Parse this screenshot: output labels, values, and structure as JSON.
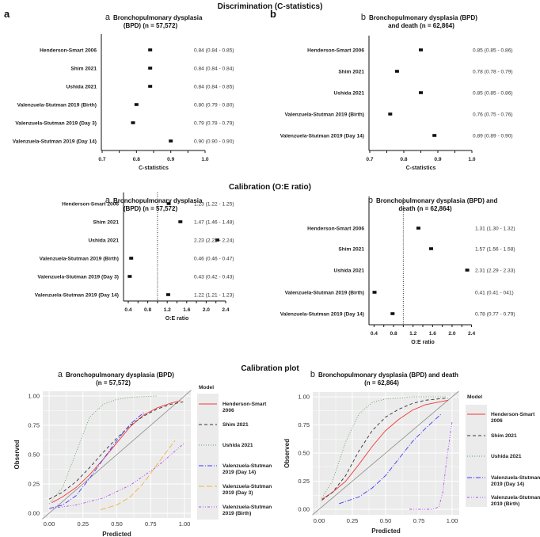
{
  "sections": {
    "discrimination": "Discrimination (C-statistics)",
    "calibration": "Calibration (O:E ratio)",
    "calibration_plot": "Calibration plot"
  },
  "panel_letters": {
    "a": "a",
    "b": "b"
  },
  "chart_data": [
    {
      "type": "forest",
      "id": "cstat-bpd",
      "sub": "a",
      "title": [
        "Bronchopulmonary dysplasia",
        "(BPD) (n = 57,572)"
      ],
      "xlabel": "C-statistics",
      "xlim": [
        0.7,
        1.0
      ],
      "ticks": [
        0.7,
        0.8,
        0.9,
        1.0
      ],
      "tick_labels": [
        "0.7",
        "0.8",
        "0.9",
        "1.0"
      ],
      "rows": [
        {
          "model": "Henderson-Smart 2006",
          "value": 0.84,
          "text": "0.84 (0.84 - 0.85)"
        },
        {
          "model": "Shim 2021",
          "value": 0.84,
          "text": "0.84 (0.84 - 0.84)"
        },
        {
          "model": "Ushida 2021",
          "value": 0.84,
          "text": "0.84 (0.84 - 0.85)"
        },
        {
          "model": "Valenzuela-Stutman 2019 (Birth)",
          "value": 0.8,
          "text": "0.80 (0.79 - 0.80)"
        },
        {
          "model": "Valenzuela-Stutman 2019 (Day 3)",
          "value": 0.79,
          "text": "0.79 (0.78 - 0.79)"
        },
        {
          "model": "Valenzuela-Stutman 2019 (Day 14)",
          "value": 0.9,
          "text": "0.90 (0.90 - 0.90)"
        }
      ]
    },
    {
      "type": "forest",
      "id": "cstat-bpd-death",
      "sub": "b",
      "title": [
        "Bronchopulmonary dysplasia (BPD)",
        "and death (n = 62,864)"
      ],
      "xlabel": "C-statistics",
      "xlim": [
        0.7,
        1.0
      ],
      "ticks": [
        0.7,
        0.8,
        0.9,
        1.0
      ],
      "tick_labels": [
        "0.7",
        "0.8",
        "0.9",
        "1.0"
      ],
      "rows": [
        {
          "model": "Henderson-Smart 2006",
          "value": 0.85,
          "text": "0.85 (0.85 - 0.86)"
        },
        {
          "model": "Shim 2021",
          "value": 0.78,
          "text": "0.78 (0.78 - 0.79)"
        },
        {
          "model": "Ushida 2021",
          "value": 0.85,
          "text": "0.85 (0.85 - 0.86)"
        },
        {
          "model": "Valenzuela-Stutman 2019 (Birth)",
          "value": 0.76,
          "text": "0.76 (0.75 - 0.76)"
        },
        {
          "model": "Valenzuela-Stutman 2019 (Day 14)",
          "value": 0.89,
          "text": "0.89 (0.89 - 0.90)"
        }
      ]
    },
    {
      "type": "forest",
      "id": "oe-bpd",
      "sub": "a",
      "title": [
        "Bronchopulmonary dysplasia",
        "(BPD) (n = 57,572)"
      ],
      "xlabel": "O:E ratio",
      "xlim": [
        0.4,
        2.4
      ],
      "reference": 1.0,
      "ticks": [
        0.4,
        0.8,
        1.2,
        1.6,
        2.0,
        2.4
      ],
      "tick_labels": [
        "0.4",
        "0.8",
        "1.2",
        "1.6",
        "2.0",
        "2.4"
      ],
      "rows": [
        {
          "model": "Henderson-Smart 2006",
          "value": 1.23,
          "text": "1.23 (1.22 - 1.25)"
        },
        {
          "model": "Shim 2021",
          "value": 1.47,
          "text": "1.47 (1.46 - 1.48)"
        },
        {
          "model": "Ushida 2021",
          "value": 2.23,
          "text": "2.23 (2.22 - 2.24)"
        },
        {
          "model": "Valenzuela-Stutman 2019 (Birth)",
          "value": 0.46,
          "text": "0.46 (0.46 - 0.47)"
        },
        {
          "model": "Valenzuela-Stutman 2019 (Day 3)",
          "value": 0.43,
          "text": "0.43 (0.42 - 0.43)"
        },
        {
          "model": "Valenzuela-Stutman 2019 (Day 14)",
          "value": 1.22,
          "text": "1.22 (1.21 - 1.23)"
        }
      ]
    },
    {
      "type": "forest",
      "id": "oe-bpd-death",
      "sub": "b",
      "title": [
        "Bronchopulmonary dysplasia (BPD) and",
        "death (n = 62,864)"
      ],
      "xlabel": "O:E ratio",
      "xlim": [
        0.4,
        2.4
      ],
      "reference": 1.0,
      "ticks": [
        0.4,
        0.8,
        1.2,
        1.6,
        2.0,
        2.4
      ],
      "tick_labels": [
        "0.4",
        "0.8",
        "1.2",
        "1.6",
        "2.0",
        "2.4"
      ],
      "rows": [
        {
          "model": "Henderson-Smart 2006",
          "value": 1.31,
          "text": "1.31 (1.30 - 1.32)"
        },
        {
          "model": "Shim 2021",
          "value": 1.57,
          "text": "1.57 (1.56 - 1.58)"
        },
        {
          "model": "Ushida 2021",
          "value": 2.31,
          "text": "2.31 (2.29 - 2.33)"
        },
        {
          "model": "Valenzuela-Stutman 2019 (Birth)",
          "value": 0.41,
          "text": "0.41 (0.41 - 041)"
        },
        {
          "model": "Valenzuela-Stutman 2019 (Day 14)",
          "value": 0.78,
          "text": "0.78 (0.77 - 0.79)"
        }
      ]
    },
    {
      "type": "line",
      "id": "calplot-bpd",
      "sub": "a",
      "title": [
        "Bronchopulmonary dysplasia (BPD)",
        "(n = 57,572)"
      ],
      "xlabel": "Predicted",
      "ylabel": "Observed",
      "xlim": [
        0,
        1
      ],
      "ylim": [
        0,
        1
      ],
      "ticks": [
        "0.00",
        "0.25",
        "0.50",
        "0.75",
        "1.00"
      ],
      "legend_title": "Model",
      "series": [
        {
          "name": [
            "Henderson-Smart",
            "2006"
          ],
          "color": "#f03a3a",
          "dash": "",
          "points": [
            [
              0.02,
              0.09
            ],
            [
              0.1,
              0.14
            ],
            [
              0.2,
              0.22
            ],
            [
              0.3,
              0.33
            ],
            [
              0.4,
              0.46
            ],
            [
              0.5,
              0.6
            ],
            [
              0.6,
              0.74
            ],
            [
              0.7,
              0.84
            ],
            [
              0.8,
              0.9
            ],
            [
              0.9,
              0.94
            ],
            [
              0.97,
              0.96
            ]
          ]
        },
        {
          "name": [
            "Shim 2021"
          ],
          "color": "#333333",
          "dash": "4,3",
          "points": [
            [
              0,
              0.12
            ],
            [
              0.1,
              0.18
            ],
            [
              0.2,
              0.27
            ],
            [
              0.3,
              0.39
            ],
            [
              0.4,
              0.52
            ],
            [
              0.5,
              0.64
            ],
            [
              0.6,
              0.75
            ],
            [
              0.7,
              0.83
            ],
            [
              0.8,
              0.89
            ],
            [
              0.9,
              0.93
            ],
            [
              0.99,
              0.95
            ]
          ]
        },
        {
          "name": [
            "Ushida 2021"
          ],
          "color": "#5f9e5f",
          "dash": "1,2",
          "points": [
            [
              0,
              0.08
            ],
            [
              0.1,
              0.22
            ],
            [
              0.2,
              0.52
            ],
            [
              0.3,
              0.82
            ],
            [
              0.4,
              0.93
            ],
            [
              0.5,
              0.97
            ],
            [
              0.6,
              0.99
            ],
            [
              0.8,
              1.0
            ]
          ]
        },
        {
          "name": [
            "Valenzuela-Stutman",
            "2019 (Day 14)"
          ],
          "color": "#3a3aff",
          "dash": "6,2,1,2",
          "points": [
            [
              0,
              0.04
            ],
            [
              0.1,
              0.07
            ],
            [
              0.2,
              0.15
            ],
            [
              0.3,
              0.3
            ],
            [
              0.4,
              0.46
            ],
            [
              0.5,
              0.62
            ],
            [
              0.6,
              0.76
            ],
            [
              0.7,
              0.86
            ]
          ]
        },
        {
          "name": [
            "Valenzuela-Stutman",
            "2019 (Day 3)"
          ],
          "color": "#f5b040",
          "dash": "7,3",
          "points": [
            [
              0.38,
              0.03
            ],
            [
              0.5,
              0.07
            ],
            [
              0.6,
              0.14
            ],
            [
              0.7,
              0.26
            ],
            [
              0.8,
              0.42
            ],
            [
              0.93,
              0.62
            ]
          ]
        },
        {
          "name": [
            "Valenzuela-Stutman",
            "2019 (Birth)"
          ],
          "color": "#b050f0",
          "dash": "3,2,1,2,1,2",
          "points": [
            [
              0,
              0.04
            ],
            [
              0.2,
              0.07
            ],
            [
              0.4,
              0.13
            ],
            [
              0.6,
              0.24
            ],
            [
              0.8,
              0.4
            ],
            [
              1.0,
              0.6
            ]
          ]
        }
      ]
    },
    {
      "type": "line",
      "id": "calplot-bpd-death",
      "sub": "b",
      "title": [
        "Bronchopulmonary dysplasia (BPD) and death",
        "(n = 62,864)"
      ],
      "xlabel": "Predicted",
      "ylabel": "Observed",
      "xlim": [
        0,
        1
      ],
      "ylim": [
        0,
        1
      ],
      "ticks": [
        "0.00",
        "0.25",
        "0.50",
        "0.75",
        "1.00"
      ],
      "legend_title": "Model",
      "series": [
        {
          "name": [
            "Henderson-Smart",
            "2006"
          ],
          "color": "#f03a3a",
          "dash": "",
          "points": [
            [
              0.02,
              0.09
            ],
            [
              0.1,
              0.15
            ],
            [
              0.2,
              0.25
            ],
            [
              0.3,
              0.4
            ],
            [
              0.4,
              0.56
            ],
            [
              0.5,
              0.7
            ],
            [
              0.6,
              0.8
            ],
            [
              0.7,
              0.88
            ],
            [
              0.8,
              0.93
            ],
            [
              0.97,
              0.97
            ]
          ]
        },
        {
          "name": [
            "Shim 2021"
          ],
          "color": "#333333",
          "dash": "4,3",
          "points": [
            [
              0.02,
              0.08
            ],
            [
              0.1,
              0.15
            ],
            [
              0.2,
              0.3
            ],
            [
              0.3,
              0.52
            ],
            [
              0.4,
              0.7
            ],
            [
              0.5,
              0.82
            ],
            [
              0.6,
              0.89
            ],
            [
              0.7,
              0.94
            ],
            [
              0.8,
              0.97
            ],
            [
              0.97,
              0.99
            ]
          ]
        },
        {
          "name": [
            "Ushida 2021"
          ],
          "color": "#5f9e5f",
          "dash": "1,2",
          "points": [
            [
              0.02,
              0.1
            ],
            [
              0.1,
              0.25
            ],
            [
              0.2,
              0.6
            ],
            [
              0.3,
              0.85
            ],
            [
              0.4,
              0.95
            ],
            [
              0.5,
              0.98
            ],
            [
              0.7,
              1.0
            ],
            [
              0.95,
              1.0
            ]
          ]
        },
        {
          "name": [
            "Valenzuela-Stutman",
            "2019 (Day 14)"
          ],
          "color": "#3a3aff",
          "dash": "6,2,1,2",
          "points": [
            [
              0.15,
              0.05
            ],
            [
              0.3,
              0.11
            ],
            [
              0.4,
              0.19
            ],
            [
              0.5,
              0.3
            ],
            [
              0.6,
              0.45
            ],
            [
              0.7,
              0.6
            ],
            [
              0.8,
              0.72
            ],
            [
              0.92,
              0.85
            ]
          ]
        },
        {
          "name": [
            "Valenzuela-Stutman",
            "2019 (Birth)"
          ],
          "color": "#b050f0",
          "dash": "3,2,1,2,1,2",
          "points": [
            [
              0.68,
              0.0
            ],
            [
              0.85,
              0.0
            ],
            [
              0.9,
              0.02
            ],
            [
              0.93,
              0.15
            ],
            [
              0.96,
              0.45
            ],
            [
              1.0,
              0.78
            ]
          ]
        }
      ]
    }
  ]
}
